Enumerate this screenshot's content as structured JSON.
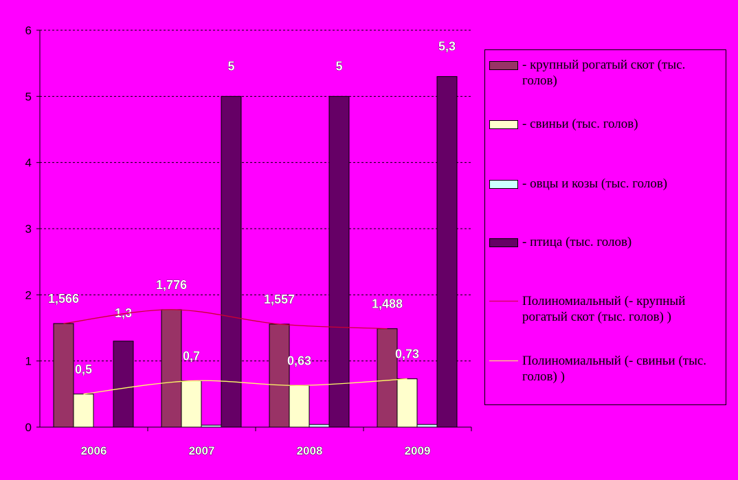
{
  "chart_data": {
    "type": "bar",
    "categories": [
      "2006",
      "2007",
      "2008",
      "2009"
    ],
    "ylim": [
      0,
      6
    ],
    "yticks": [
      0,
      1,
      2,
      3,
      4,
      5,
      6
    ],
    "grid": true,
    "legend_position": "right",
    "series": [
      {
        "name": "- крупный рогатый скот (тыс. голов)",
        "color": "#993366",
        "values": [
          1.566,
          1.776,
          1.557,
          1.488
        ],
        "labels": [
          "1,566",
          "1,776",
          "1,557",
          "1,488"
        ]
      },
      {
        "name": "- свиньи (тыс. голов)",
        "color": "#FFFFCC",
        "values": [
          0.5,
          0.7,
          0.63,
          0.73
        ],
        "labels": [
          "0,5",
          "0,7",
          "0,63",
          "0,73"
        ]
      },
      {
        "name": "- овцы и козы (тыс. голов)",
        "color": "#CCFFFF",
        "values": [
          0,
          0.03,
          0.04,
          0.04
        ],
        "labels": [
          "",
          "",
          "",
          ""
        ]
      },
      {
        "name": "- птица  (тыс. голов)",
        "color": "#660066",
        "values": [
          1.3,
          5,
          5,
          5.3
        ],
        "labels": [
          "1,3",
          "5",
          "5",
          "5,3"
        ]
      }
    ],
    "trendlines": [
      {
        "name": "Полиномиальный (- крупный рогатый скот (тыс. голов)      )",
        "color": "#CC0033",
        "series_index": 0
      },
      {
        "name": "Полиномиальный (- свиньи (тыс. голов)        )",
        "color": "#FFFF66",
        "series_index": 1
      }
    ]
  }
}
